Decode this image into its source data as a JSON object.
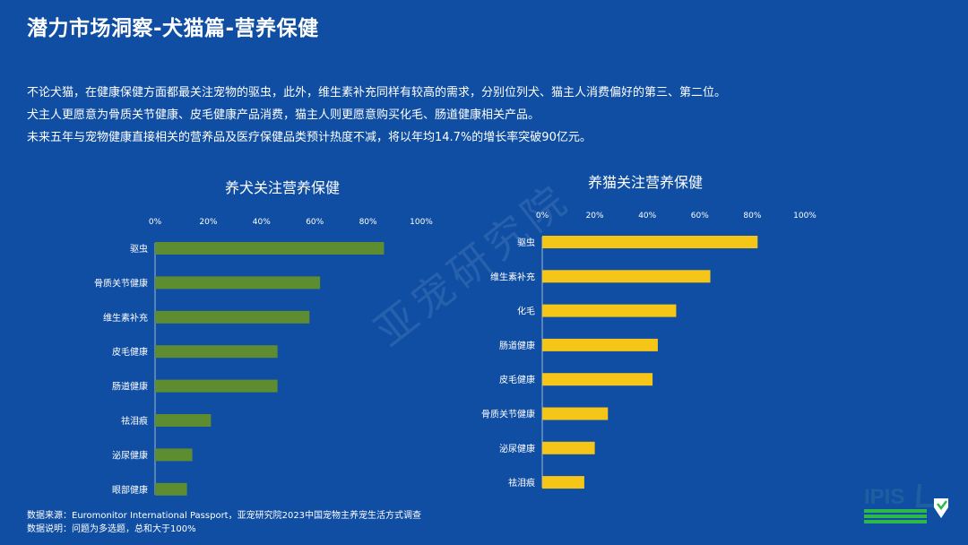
{
  "header": {
    "title": "潜力市场洞察-犬猫篇-营养保健"
  },
  "intro": {
    "lines": [
      "不论犬猫，在健康保健方面都最关注宠物的驱虫，此外，维生素补充同样有较高的需求，分别位列犬、猫主人消费偏好的第三、第二位。",
      "犬主人更愿意为骨质关节健康、皮毛健康产品消费，猫主人则更愿意购买化毛、肠道健康相关产品。",
      "未来五年与宠物健康直接相关的营养品及医疗保健品类预计热度不减，将以年均14.7%的增长率突破90亿元。"
    ]
  },
  "watermark": "亚宠研究院",
  "footnotes": {
    "source": "数据来源：Euromonitor International Passport，亚宠研究院2023中国宠物主养宠生活方式调查",
    "note": "数据说明：问题为多选题，总和大于100%"
  },
  "logo": {
    "text": "IPIS",
    "colors": {
      "text": "#1e5fa0",
      "accent": "#2eb84a"
    }
  },
  "colors": {
    "dog_bar": "#5e8c31",
    "cat_bar": "#f5c518",
    "background": "#0f4ea3"
  },
  "chart_data": [
    {
      "type": "bar",
      "orientation": "horizontal",
      "title": "养犬关注营养保健",
      "categories": [
        "驱虫",
        "骨质关节健康",
        "维生素补充",
        "皮毛健康",
        "肠道健康",
        "祛泪痕",
        "泌尿健康",
        "眼部健康"
      ],
      "values": [
        86,
        62,
        58,
        46,
        46,
        21,
        14,
        12
      ],
      "xlim": [
        0,
        100
      ],
      "ticks": [
        "0%",
        "20%",
        "40%",
        "60%",
        "80%",
        "100%"
      ],
      "color": "#5e8c31",
      "grid": false
    },
    {
      "type": "bar",
      "orientation": "horizontal",
      "title": "养猫关注营养保健",
      "categories": [
        "驱虫",
        "维生素补充",
        "化毛",
        "肠道健康",
        "皮毛健康",
        "骨质关节健康",
        "泌尿健康",
        "祛泪痕"
      ],
      "values": [
        82,
        64,
        51,
        44,
        42,
        25,
        20,
        16
      ],
      "xlim": [
        0,
        100
      ],
      "ticks": [
        "0%",
        "20%",
        "40%",
        "60%",
        "80%",
        "100%"
      ],
      "color": "#f5c518",
      "grid": false
    }
  ]
}
